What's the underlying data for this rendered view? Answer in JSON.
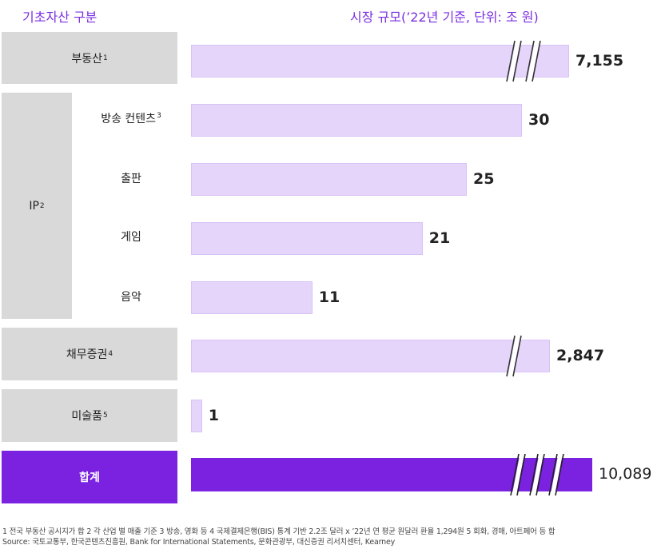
{
  "headers": {
    "left": "기초자산 구분",
    "right": "시장 규모(’22년 기준, 단위: 조 원)"
  },
  "chart_data": {
    "type": "bar",
    "orientation": "horizontal",
    "title": "",
    "axis_break": true,
    "groups": [
      {
        "label": "부동산",
        "sup": "1",
        "rows": [
          "부동산"
        ]
      },
      {
        "label": "IP",
        "sup": "2",
        "rows": [
          "방송 컨텐츠",
          "출판",
          "게임",
          "음악"
        ]
      },
      {
        "label": "채무증권",
        "sup": "4",
        "rows": [
          "채무증권"
        ]
      },
      {
        "label": "미술품",
        "sup": "5",
        "rows": [
          "미술품"
        ]
      },
      {
        "label": "합계",
        "sup": "",
        "rows": [
          "합계"
        ]
      }
    ],
    "subcategories": [
      {
        "label": "방송 컨텐츠",
        "sup": "3"
      },
      {
        "label": "출판",
        "sup": ""
      },
      {
        "label": "게임",
        "sup": ""
      },
      {
        "label": "음악",
        "sup": ""
      }
    ],
    "categories": [
      "부동산",
      "방송 컨텐츠",
      "출판",
      "게임",
      "음악",
      "채무증권",
      "미술품",
      "합계"
    ],
    "values": [
      7155,
      30,
      25,
      21,
      11,
      2847,
      1,
      10089
    ],
    "value_labels": [
      "7,155",
      "30",
      "25",
      "21",
      "11",
      "2,847",
      "1",
      "10,089"
    ],
    "broken_bars": [
      "부동산",
      "채무증권",
      "합계"
    ],
    "colors": {
      "bar": "#e6d5fb",
      "bar_border": "#d8c3f6",
      "total_bar": "#7a22e0",
      "category_box": "#d9d9d9",
      "header": "#7b2fe0"
    }
  },
  "footnotes": {
    "line1": "1 전국 부동산 공시지가 합     2 각 산업 별 매출 기준     3 방송, 영화 등     4 국제결제은행(BIS) 통계 기반 2.2조 달러 x ’22년 연 평균 원달러 환율 1,294원     5 회화, 경매, 아트페어 등 합",
    "line2": "Source: 국토교통부, 한국콘텐츠진흥원, Bank for International Statements, 문화관광부, 대신증권 리서치센터, Kearney"
  }
}
